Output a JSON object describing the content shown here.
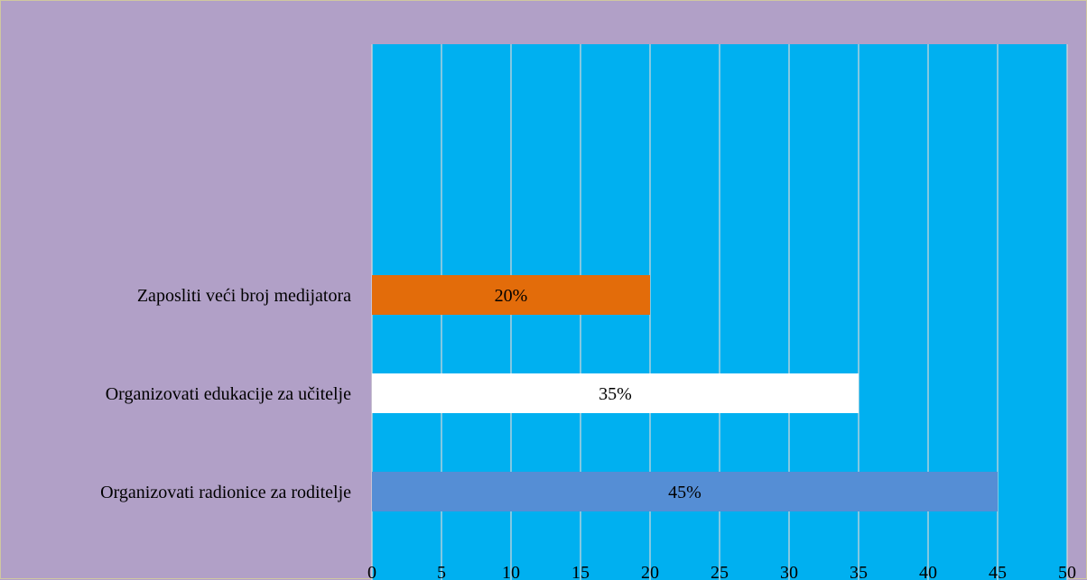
{
  "chart_data": {
    "type": "bar",
    "orientation": "horizontal",
    "categories": [
      "Zaposliti veći broj medijatora",
      "Organizovati edukacije za učitelje",
      "Organizovati radionice za roditelje"
    ],
    "values": [
      20,
      35,
      45
    ],
    "data_labels": [
      "20%",
      "35%",
      "45%"
    ],
    "bar_colors": [
      "#e36c0a",
      "#ffffff",
      "#558ed5"
    ],
    "xlim": [
      0,
      50
    ],
    "x_ticks": [
      0,
      5,
      10,
      15,
      20,
      25,
      30,
      35,
      40,
      45,
      50
    ],
    "grid": true,
    "title": "",
    "xlabel": "",
    "ylabel": ""
  },
  "colors": {
    "page_background": "#b1a0c7",
    "plot_background": "#00b0f0",
    "gridline": "#d9d9d9"
  }
}
